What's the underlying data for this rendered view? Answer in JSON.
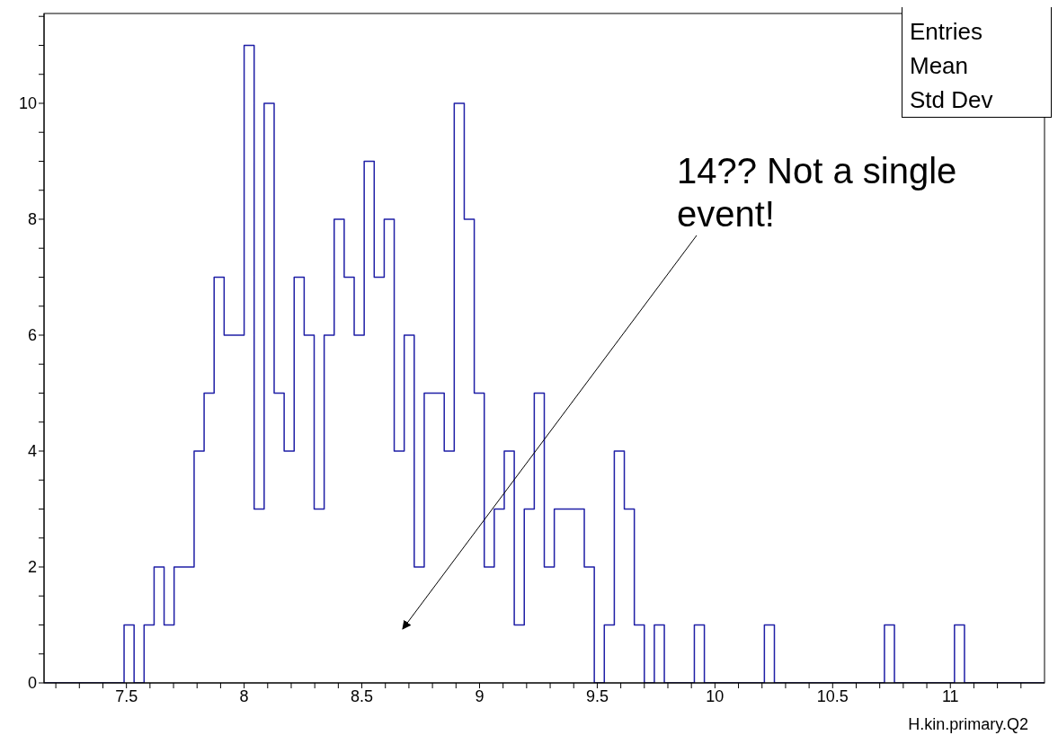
{
  "chart_data": {
    "type": "histogram",
    "xlabel": "H.kin.primary.Q2",
    "bins": [
      7.15,
      7.1925,
      7.235,
      7.2775,
      7.32,
      7.3625,
      7.405,
      7.4475,
      7.49,
      7.5325,
      7.575,
      7.6175,
      7.66,
      7.7025,
      7.745,
      7.7875,
      7.83,
      7.8725,
      7.915,
      7.9575,
      8,
      8.0425,
      8.085,
      8.1275,
      8.17,
      8.2125,
      8.255,
      8.2975,
      8.34,
      8.3825,
      8.425,
      8.4675,
      8.51,
      8.5525,
      8.595,
      8.6375,
      8.68,
      8.7225,
      8.765,
      8.8075,
      8.85,
      8.8925,
      8.935,
      8.9775,
      9.02,
      9.0625,
      9.105,
      9.1475,
      9.19,
      9.2325,
      9.275,
      9.3175,
      9.36,
      9.4025,
      9.445,
      9.4875,
      9.53,
      9.5725,
      9.615,
      9.6575,
      9.7,
      9.7425,
      9.785,
      9.8275,
      9.87,
      9.9125,
      9.955,
      9.9975,
      10.04,
      10.0825,
      10.125,
      10.1675,
      10.21,
      10.2525,
      10.295,
      10.3375,
      10.38,
      10.4225,
      10.465,
      10.5075,
      10.55,
      10.5925,
      10.635,
      10.6775,
      10.72,
      10.7625,
      10.805,
      10.8475,
      10.89,
      10.9325,
      10.975,
      11.0175,
      11.06,
      11.1025,
      11.145,
      11.1875,
      11.23,
      11.2725,
      11.315,
      11.3575,
      11.4
    ],
    "values": [
      0,
      0,
      0,
      0,
      0,
      0,
      0,
      0,
      1,
      0,
      1,
      2,
      1,
      2,
      2,
      4,
      5,
      7,
      6,
      6,
      11,
      3,
      10,
      5,
      4,
      7,
      6,
      3,
      6,
      8,
      7,
      6,
      9,
      7,
      8,
      4,
      6,
      2,
      5,
      5,
      4,
      10,
      8,
      5,
      2,
      3,
      4,
      1,
      3,
      5,
      2,
      3,
      3,
      3,
      2,
      0,
      1,
      4,
      3,
      1,
      0,
      1,
      0,
      0,
      0,
      1,
      0,
      0,
      0,
      0,
      0,
      0,
      1,
      0,
      0,
      0,
      0,
      0,
      0,
      0,
      0,
      0,
      0,
      0,
      1,
      0,
      0,
      0,
      0,
      0,
      0,
      1,
      0,
      0,
      0,
      0,
      0,
      0,
      0,
      0
    ],
    "color": "#1f1fa6",
    "xlim": [
      7.15,
      11.4
    ],
    "xticks": [
      {
        "value": 7.2,
        "label": null
      },
      {
        "value": 7.3,
        "label": null
      },
      {
        "value": 7.4,
        "label": null
      },
      7.5,
      {
        "value": 7.6,
        "label": null
      },
      {
        "value": 7.7,
        "label": null
      },
      {
        "value": 7.8,
        "label": null
      },
      {
        "value": 7.9,
        "label": null
      },
      8,
      {
        "value": 8.1,
        "label": null
      },
      {
        "value": 8.2,
        "label": null
      },
      {
        "value": 8.3,
        "label": null
      },
      {
        "value": 8.4,
        "label": null
      },
      8.5,
      {
        "value": 8.6,
        "label": null
      },
      {
        "value": 8.7,
        "label": null
      },
      {
        "value": 8.8,
        "label": null
      },
      {
        "value": 8.9,
        "label": null
      },
      9,
      {
        "value": 9.1,
        "label": null
      },
      {
        "value": 9.2,
        "label": null
      },
      {
        "value": 9.3,
        "label": null
      },
      {
        "value": 9.4,
        "label": null
      },
      9.5,
      {
        "value": 9.6,
        "label": null
      },
      {
        "value": 9.7,
        "label": null
      },
      {
        "value": 9.8,
        "label": null
      },
      {
        "value": 9.9,
        "label": null
      },
      10,
      {
        "value": 10.1,
        "label": null
      },
      {
        "value": 10.2,
        "label": null
      },
      {
        "value": 10.3,
        "label": null
      },
      {
        "value": 10.4,
        "label": null
      },
      10.5,
      {
        "value": 10.6,
        "label": null
      },
      {
        "value": 10.7,
        "label": null
      },
      {
        "value": 10.8,
        "label": null
      },
      {
        "value": 10.9,
        "label": null
      },
      11,
      {
        "value": 11.1,
        "label": null
      },
      {
        "value": 11.2,
        "label": null
      },
      {
        "value": 11.3,
        "label": null
      }
    ],
    "ylim": [
      0,
      11.55
    ],
    "yticks": [
      0,
      {
        "value": 0.5,
        "label": null
      },
      {
        "value": 1,
        "label": null
      },
      {
        "value": 1.5,
        "label": null
      },
      2,
      {
        "value": 2.5,
        "label": null
      },
      {
        "value": 3,
        "label": null
      },
      {
        "value": 3.5,
        "label": null
      },
      4,
      {
        "value": 4.5,
        "label": null
      },
      {
        "value": 5,
        "label": null
      },
      {
        "value": 5.5,
        "label": null
      },
      6,
      {
        "value": 6.5,
        "label": null
      },
      {
        "value": 7,
        "label": null
      },
      {
        "value": 7.5,
        "label": null
      },
      8,
      {
        "value": 8.5,
        "label": null
      },
      {
        "value": 9,
        "label": null
      },
      {
        "value": 9.5,
        "label": null
      },
      10,
      {
        "value": 10.5,
        "label": null
      },
      {
        "value": 11,
        "label": null
      },
      {
        "value": 11.5,
        "label": null
      }
    ],
    "grid": false,
    "legend": false,
    "annotations": [
      "14?? Not a single event!",
      "Entries",
      "Mean",
      "Std Dev"
    ]
  }
}
